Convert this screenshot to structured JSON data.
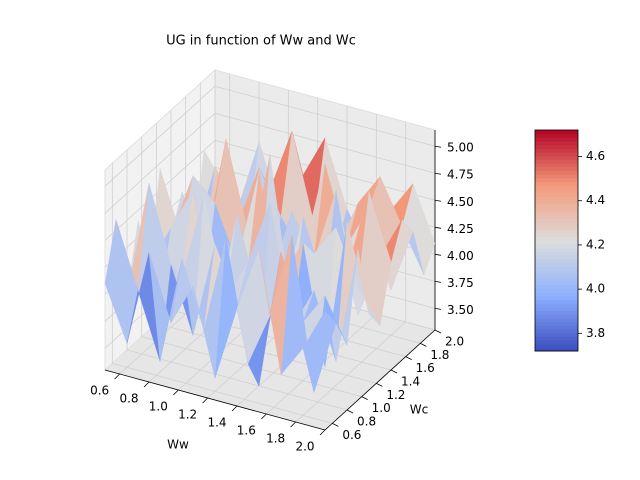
{
  "chart_data": {
    "type": "surface",
    "title": "UG in function of Ww and Wc",
    "xlabel": "Ww",
    "ylabel": "Wc",
    "colormap": "coolwarm",
    "x": [
      0.5,
      0.65,
      0.8,
      0.95,
      1.1,
      1.25,
      1.4,
      1.55,
      1.7,
      1.85,
      2.0
    ],
    "y": [
      0.5,
      0.65,
      0.8,
      0.95,
      1.1,
      1.25,
      1.4,
      1.55,
      1.7,
      1.85,
      2.0
    ],
    "z": [
      [
        4.1,
        3.6,
        4.5,
        3.9,
        4.3,
        3.5,
        4.2,
        4.8,
        3.7,
        4.0,
        4.4
      ],
      [
        4.6,
        4.0,
        3.4,
        4.4,
        3.8,
        4.7,
        3.6,
        4.1,
        4.9,
        3.5,
        4.2
      ],
      [
        3.8,
        4.9,
        4.2,
        3.6,
        4.5,
        4.0,
        3.3,
        4.6,
        4.0,
        4.3,
        3.9
      ],
      [
        4.4,
        3.7,
        4.0,
        4.8,
        3.9,
        4.3,
        4.9,
        3.8,
        4.2,
        3.6,
        4.7
      ],
      [
        3.9,
        4.3,
        4.7,
        3.5,
        4.6,
        3.8,
        4.1,
        4.5,
        3.4,
        4.8,
        4.0
      ],
      [
        4.7,
        4.1,
        3.6,
        4.2,
        4.0,
        5.1,
        3.7,
        4.3,
        4.6,
        4.1,
        3.8
      ],
      [
        4.0,
        4.6,
        4.4,
        3.9,
        4.8,
        3.6,
        4.5,
        3.9,
        4.1,
        4.9,
        4.3
      ],
      [
        4.3,
        3.8,
        4.9,
        4.1,
        3.7,
        4.4,
        4.0,
        4.7,
        3.6,
        4.2,
        4.6
      ],
      [
        3.7,
        4.5,
        4.0,
        4.6,
        4.2,
        3.9,
        4.8,
        4.1,
        4.5,
        3.8,
        4.4
      ],
      [
        4.5,
        4.2,
        3.8,
        4.3,
        4.9,
        4.1,
        3.9,
        4.4,
        4.7,
        4.3,
        3.9
      ],
      [
        4.2,
        3.9,
        4.6,
        4.0,
        4.4,
        4.8,
        4.2,
        3.8,
        4.3,
        4.6,
        4.1
      ]
    ],
    "xlim": [
      0.5,
      2.0
    ],
    "ylim": [
      0.5,
      2.0
    ],
    "zlim": [
      3.3,
      5.15
    ],
    "xticks": [
      0.6,
      0.8,
      {
        "value": 1,
        "label": "1.0"
      },
      1.2,
      1.4,
      1.6,
      1.8,
      {
        "value": 2,
        "label": "2.0"
      }
    ],
    "yticks": [
      0.6,
      0.8,
      {
        "value": 1,
        "label": "1.0"
      },
      1.2,
      1.4,
      1.6,
      1.8,
      {
        "value": 2,
        "label": "2.0"
      }
    ],
    "zticks": [
      {
        "value": 3.5,
        "label": "3.50"
      },
      {
        "value": 3.75,
        "label": "3.75"
      },
      {
        "value": 4,
        "label": "4.00"
      },
      {
        "value": 4.25,
        "label": "4.25"
      },
      {
        "value": 4.5,
        "label": "4.50"
      },
      {
        "value": 4.75,
        "label": "4.75"
      },
      {
        "value": 5,
        "label": "5.00"
      }
    ],
    "clim": [
      3.72,
      4.72
    ],
    "colorbar_ticks": [
      3.8,
      {
        "value": 4,
        "label": "4.0"
      },
      4.2,
      4.4,
      4.6
    ],
    "grid": true
  }
}
